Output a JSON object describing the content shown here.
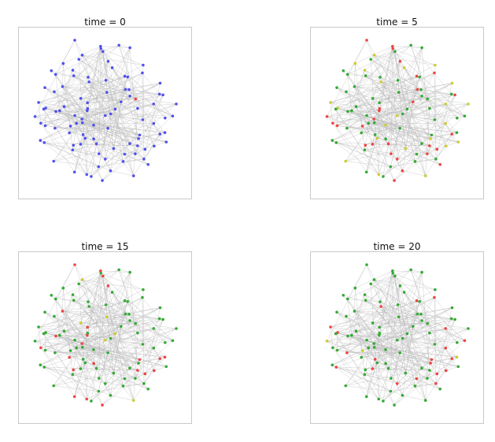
{
  "figure": {
    "panels": [
      {
        "id": "p0",
        "title": "time = 0"
      },
      {
        "id": "p5",
        "title": "time = 5"
      },
      {
        "id": "p15",
        "title": "time = 15"
      },
      {
        "id": "p20",
        "title": "time = 20"
      }
    ]
  },
  "colors": {
    "susceptible_blue": "#5050ee",
    "infected_red": "#ee4444",
    "exposed_yellow": "#cccc33",
    "recovered_green": "#33aa33",
    "edge": "#bbbbbb",
    "frame": "#c9c9c9"
  },
  "network": {
    "node_count": 100,
    "layout_seed": 7,
    "edge_seed": 11
  },
  "states": {
    "p0": {
      "default": "susceptible_blue",
      "red": 1,
      "yellow": 0
    },
    "p5": {
      "default": "recovered_green",
      "red": 28,
      "yellow": 22
    },
    "p15": {
      "default": "recovered_green",
      "red": 22,
      "yellow": 6
    },
    "p20": {
      "default": "recovered_green",
      "red": 20,
      "yellow": 3
    }
  }
}
